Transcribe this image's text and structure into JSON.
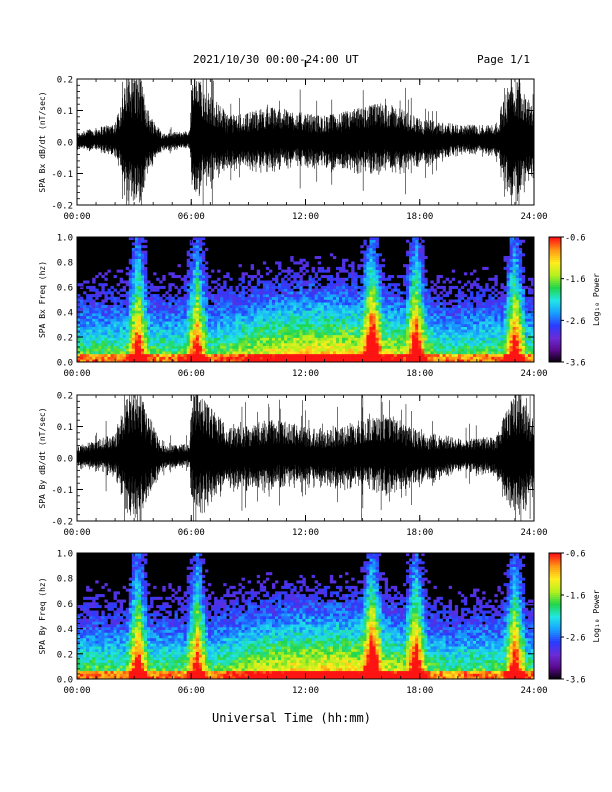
{
  "header": {
    "title": "2021/10/30  00:00-24:00 UT",
    "page": "Page 1/1"
  },
  "footer": {
    "xlabel": "Universal Time (hh:mm)"
  },
  "colors": {
    "trace": "#000000",
    "spectrogram_background": "#000000",
    "colormap": [
      "#000000",
      "#5a0a8c",
      "#6b2bd6",
      "#2a3cff",
      "#18a0ff",
      "#22e6e6",
      "#21d64b",
      "#b4f01e",
      "#ffee1e",
      "#ff9b14",
      "#ff1414"
    ]
  },
  "chart_data": [
    {
      "type": "line",
      "title": "",
      "ylabel": "SPA Bx dB/dt (nT/sec)",
      "xlabel": "",
      "xlim": [
        "00:00",
        "24:00"
      ],
      "ylim": [
        -0.2,
        0.2
      ],
      "x_ticks": [
        "00:00",
        "06:00",
        "12:00",
        "18:00",
        "24:00"
      ],
      "y_ticks": [
        "-0.2",
        "-0.1",
        "0.0",
        "0.1",
        "0.2"
      ],
      "envelope_hours": [
        0,
        1,
        2,
        2.7,
        3.3,
        3.8,
        4.5,
        5.9,
        6.1,
        7,
        8,
        9,
        10,
        11,
        12,
        13,
        14,
        15,
        16,
        17,
        18,
        19,
        20,
        21,
        22,
        22.8,
        23.3,
        24
      ],
      "envelope_amplitude": [
        0.03,
        0.04,
        0.06,
        0.22,
        0.22,
        0.1,
        0.03,
        0.03,
        0.22,
        0.15,
        0.09,
        0.1,
        0.11,
        0.1,
        0.09,
        0.09,
        0.1,
        0.11,
        0.12,
        0.11,
        0.08,
        0.07,
        0.05,
        0.05,
        0.06,
        0.22,
        0.22,
        0.1
      ],
      "grid": false
    },
    {
      "type": "heatmap",
      "title": "",
      "ylabel": "SPA Bx Freq (hz)",
      "xlabel": "",
      "xlim": [
        "00:00",
        "24:00"
      ],
      "ylim": [
        0.0,
        1.0
      ],
      "x_ticks": [
        "00:00",
        "06:00",
        "12:00",
        "18:00",
        "24:00"
      ],
      "y_ticks": [
        "0.0",
        "0.2",
        "0.4",
        "0.6",
        "0.8",
        "1.0"
      ],
      "colorbar": {
        "label": "Log₁₀ Power",
        "range": [
          -3.6,
          -0.6
        ],
        "ticks": [
          "-0.6",
          "-1.6",
          "-2.6",
          "-3.6"
        ]
      },
      "bright_bands_hours": [
        3.2,
        6.3,
        15.5,
        17.8,
        23.0
      ]
    },
    {
      "type": "line",
      "title": "",
      "ylabel": "SPA By dB/dt (nT/sec)",
      "xlabel": "",
      "xlim": [
        "00:00",
        "24:00"
      ],
      "ylim": [
        -0.2,
        0.2
      ],
      "x_ticks": [
        "00:00",
        "06:00",
        "12:00",
        "18:00",
        "24:00"
      ],
      "y_ticks": [
        "-0.2",
        "-0.1",
        "0.0",
        "0.1",
        "0.2"
      ],
      "envelope_hours": [
        0,
        1,
        2,
        2.7,
        3.3,
        3.8,
        4.5,
        5.9,
        6.1,
        7,
        8,
        9,
        10,
        11,
        12,
        13,
        14,
        15,
        16,
        17,
        18,
        19,
        20,
        21,
        22,
        22.8,
        23.3,
        24
      ],
      "envelope_amplitude": [
        0.04,
        0.05,
        0.08,
        0.22,
        0.22,
        0.14,
        0.04,
        0.04,
        0.22,
        0.16,
        0.1,
        0.11,
        0.12,
        0.11,
        0.1,
        0.1,
        0.11,
        0.12,
        0.13,
        0.12,
        0.09,
        0.08,
        0.06,
        0.06,
        0.07,
        0.22,
        0.22,
        0.12
      ],
      "grid": false
    },
    {
      "type": "heatmap",
      "title": "",
      "ylabel": "SPA By Freq (hz)",
      "xlabel": "",
      "xlim": [
        "00:00",
        "24:00"
      ],
      "ylim": [
        0.0,
        1.0
      ],
      "x_ticks": [
        "00:00",
        "06:00",
        "12:00",
        "18:00",
        "24:00"
      ],
      "y_ticks": [
        "0.0",
        "0.2",
        "0.4",
        "0.6",
        "0.8",
        "1.0"
      ],
      "colorbar": {
        "label": "Log₁₀ Power",
        "range": [
          -3.6,
          -0.6
        ],
        "ticks": [
          "-0.6",
          "-1.6",
          "-2.6",
          "-3.6"
        ]
      },
      "bright_bands_hours": [
        3.2,
        6.3,
        15.5,
        17.8,
        23.0
      ]
    }
  ]
}
